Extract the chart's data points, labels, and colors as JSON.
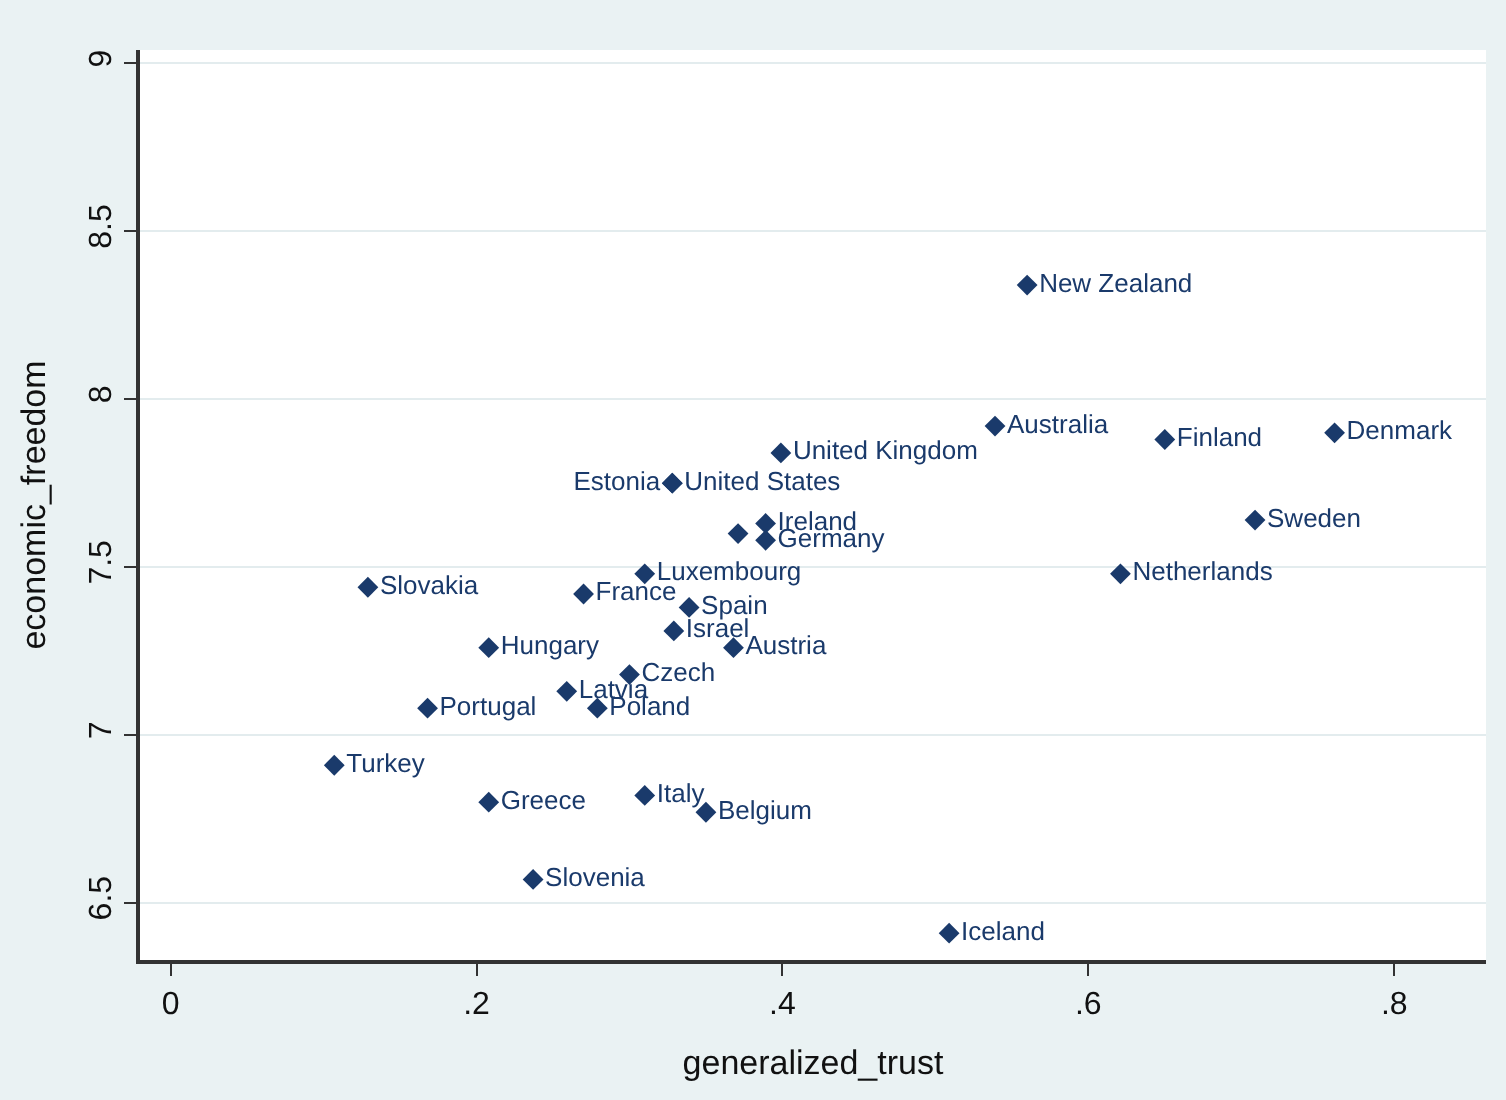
{
  "chart_data": {
    "type": "scatter",
    "xlabel": "generalized_trust",
    "ylabel": "economic_freedom",
    "x": [
      0.56,
      0.539,
      0.65,
      0.761,
      0.709,
      0.621,
      0.399,
      0.328,
      0.328,
      0.389,
      0.389,
      0.371,
      0.31,
      0.129,
      0.27,
      0.339,
      0.329,
      0.368,
      0.208,
      0.3,
      0.259,
      0.279,
      0.168,
      0.107,
      0.208,
      0.31,
      0.35,
      0.237,
      0.509
    ],
    "values": [
      8.34,
      7.92,
      7.88,
      7.9,
      7.64,
      7.48,
      7.84,
      7.75,
      7.75,
      7.63,
      7.58,
      7.6,
      7.48,
      7.44,
      7.42,
      7.38,
      7.31,
      7.26,
      7.26,
      7.18,
      7.13,
      7.08,
      7.08,
      6.91,
      6.8,
      6.82,
      6.77,
      6.57,
      6.41
    ],
    "value_labels": [
      "New Zealand",
      "Australia",
      "Finland",
      "Denmark",
      "Sweden",
      "Netherlands",
      "United Kingdom",
      "United States",
      "Estonia",
      "Ireland",
      "Germany",
      null,
      "Luxembourg",
      "Slovakia",
      "France",
      "Spain",
      "Israel",
      "Austria",
      "Hungary",
      "Czech",
      "Latvia",
      "Poland",
      "Portugal",
      "Turkey",
      "Greece",
      "Italy",
      "Belgium",
      "Slovenia",
      "Iceland"
    ],
    "color": "#1a3a6b",
    "marker": "diamond",
    "xlim": [
      -0.02,
      0.86
    ],
    "xticks": [
      {
        "value": 0,
        "label": "0"
      },
      {
        "value": 0.2,
        "label": ".2"
      },
      {
        "value": 0.4,
        "label": ".4"
      },
      {
        "value": 0.6,
        "label": ".6"
      },
      {
        "value": 0.8,
        "label": ".8"
      }
    ],
    "ylim": [
      6.33,
      9.04
    ],
    "yticks": [
      6.5,
      7,
      7.5,
      8,
      8.5,
      9
    ],
    "grid": "y",
    "legend": false
  }
}
